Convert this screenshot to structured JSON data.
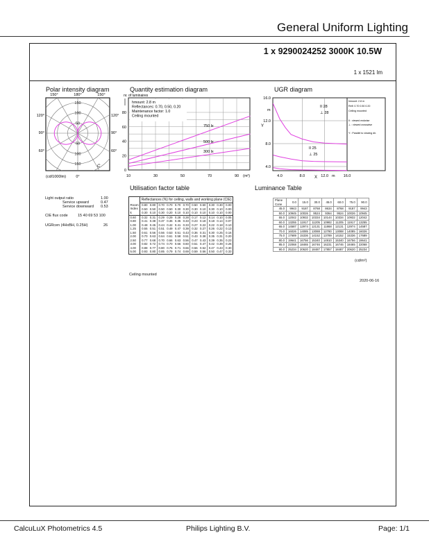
{
  "header": {
    "title": "General Uniform Lighting",
    "lamp": "1 x 9290024252 3000K 10.5W",
    "flux": "1 x 1521 lm"
  },
  "polar": {
    "title": "Polar intensity diagram",
    "angles_top": [
      "150°",
      "180°",
      "150°"
    ],
    "angles_side": [
      "120°",
      "90°",
      "60°"
    ],
    "rings": [
      "50",
      "100",
      "150"
    ],
    "unit": "(cd/1000lm)",
    "bottom_angle": "0°",
    "plane_label": "C",
    "intensity_at_90": 115,
    "color": "#e040e0"
  },
  "quantity": {
    "title": "Quantity estimation diagram",
    "ylabel": "nr. of luminaires",
    "info": [
      "hmount: 2.8 m",
      "Reflectances:  0.70, 0.50, 0.20",
      "Maintenance factor:  1.0",
      "Ceiling mounted"
    ],
    "chart_data": {
      "type": "line",
      "x_ticks": [
        "10",
        "30",
        "50",
        "70",
        "90"
      ],
      "y_ticks": [
        "0",
        "20",
        "40",
        "60",
        "80"
      ],
      "xlabel": "(m²)",
      "xlim": [
        10,
        100
      ],
      "ylim": [
        0,
        90
      ],
      "series": [
        {
          "name": "750 lx",
          "x": [
            10,
            100
          ],
          "y": [
            14,
            75
          ]
        },
        {
          "name": "500 lx",
          "x": [
            10,
            100
          ],
          "y": [
            9,
            50
          ]
        },
        {
          "name": "300 lx",
          "x": [
            10,
            100
          ],
          "y": [
            5,
            30
          ]
        }
      ]
    }
  },
  "ugr": {
    "title": "UGR diagram",
    "legend": [
      "hmount: 2.8 m",
      "Refl: 0.70 0.50 0.20",
      "Ceiling mounted",
      "II : viewed endwise",
      "⊥ : viewed crosswise",
      "Y : Parallel to viewing dir."
    ],
    "labels": {
      "end_top": "II 28",
      "cross_top": "⊥ 28",
      "end_mid": "II 25",
      "cross_mid": "⊥ 25"
    },
    "xlabel": "X",
    "ylabel": "Y",
    "unit": "m",
    "chart_data": {
      "type": "line",
      "x_ticks": [
        "4.0",
        "8.0",
        "12.0",
        "16.0"
      ],
      "y_ticks": [
        "4.0",
        "8.0",
        "12.0",
        "16.0"
      ],
      "xlim": [
        2.8,
        16
      ],
      "ylim": [
        3.3,
        16
      ],
      "series": [
        {
          "x": [
            2.8,
            4,
            5,
            6,
            8,
            10,
            12,
            14,
            16
          ],
          "y": [
            15,
            12.3,
            10.8,
            9.6,
            8.8,
            8.3,
            8.1,
            8,
            7.9
          ]
        },
        {
          "x": [
            2.8,
            4,
            6,
            8,
            10,
            12,
            16
          ],
          "y": [
            6,
            5.7,
            5.3,
            5.0,
            4.9,
            4.85,
            4.8
          ]
        },
        {
          "x": [
            2.8,
            4,
            6,
            8,
            12,
            16
          ],
          "y": [
            3.8,
            3.6,
            3.45,
            3.4,
            3.35,
            3.3
          ]
        }
      ]
    }
  },
  "info": {
    "rows": [
      [
        "Light output ratio",
        "1.00"
      ],
      [
        "Service upward",
        "0.47"
      ],
      [
        "Service downward",
        "0.53"
      ],
      [
        "CIE flux code",
        "15 40 69 53 100"
      ],
      [
        "UGRcen (4HxBH, 0.25H)",
        "26"
      ]
    ]
  },
  "uf": {
    "title": "Utilisation factor table",
    "caption": "Reflectances (%) for ceiling, walls and working plane (CIE)",
    "room_index": "Room Index k",
    "footer": "Ceiling mounted",
    "refl": [
      [
        "0.80",
        "0.80",
        "0.70",
        "0.70",
        "0.70",
        "0.70",
        "0.50",
        "0.50",
        "0.30",
        "0.30",
        "0.00"
      ],
      [
        "0.50",
        "0.50",
        "0.50",
        "0.50",
        "0.30",
        "0.30",
        "0.30",
        "0.10",
        "0.30",
        "0.10",
        "0.00"
      ],
      [
        "0.30",
        "0.10",
        "0.30",
        "0.20",
        "0.10",
        "0.10",
        "0.10",
        "0.10",
        "0.10",
        "0.10",
        "0.00"
      ]
    ],
    "rows": [
      [
        "0.60",
        "0.32",
        "0.31",
        "0.29",
        "0.29",
        "0.28",
        "0.28",
        "0.17",
        "0.12",
        "0.14",
        "0.10",
        "0.05"
      ],
      [
        "0.80",
        "0.41",
        "0.38",
        "0.37",
        "0.36",
        "0.35",
        "0.33",
        "0.23",
        "0.18",
        "0.18",
        "0.14",
        "0.07"
      ],
      [
        "1.00",
        "0.48",
        "0.45",
        "0.44",
        "0.42",
        "0.41",
        "0.33",
        "0.27",
        "0.22",
        "0.22",
        "0.18",
        "0.10"
      ],
      [
        "1.25",
        "0.55",
        "0.51",
        "0.51",
        "0.49",
        "0.47",
        "0.39",
        "0.32",
        "0.27",
        "0.26",
        "0.22",
        "0.13"
      ],
      [
        "1.50",
        "0.61",
        "0.56",
        "0.56",
        "0.53",
        "0.51",
        "0.43",
        "0.36",
        "0.31",
        "0.30",
        "0.25",
        "0.16"
      ],
      [
        "2.00",
        "0.70",
        "0.63",
        "0.64",
        "0.61",
        "0.58",
        "0.51",
        "0.43",
        "0.38",
        "0.35",
        "0.31",
        "0.20"
      ],
      [
        "2.50",
        "0.77",
        "0.68",
        "0.70",
        "0.66",
        "0.63",
        "0.56",
        "0.47",
        "0.43",
        "0.39",
        "0.35",
        "0.23"
      ],
      [
        "3.00",
        "0.82",
        "0.72",
        "0.74",
        "0.70",
        "0.66",
        "0.60",
        "0.51",
        "0.47",
        "0.42",
        "0.39",
        "0.26"
      ],
      [
        "4.00",
        "0.88",
        "0.77",
        "0.80",
        "0.75",
        "0.71",
        "0.66",
        "0.56",
        "0.52",
        "0.47",
        "0.43",
        "0.30"
      ],
      [
        "5.00",
        "0.93",
        "0.80",
        "0.85",
        "0.79",
        "0.74",
        "0.69",
        "0.59",
        "0.56",
        "0.50",
        "0.47",
        "0.33"
      ]
    ]
  },
  "lum": {
    "title": "Luminance Table",
    "corner": "Plane Cone",
    "cols": [
      "0.0",
      "15.0",
      "30.0",
      "45.0",
      "60.0",
      "75.0",
      "90.0"
    ],
    "unit": "(cd/m²)",
    "rows": [
      [
        "45.0",
        "9943",
        "9187",
        "8768",
        "8634",
        "8768",
        "9187",
        "9943"
      ],
      [
        "50.0",
        "10945",
        "10026",
        "9524",
        "9364",
        "9524",
        "10026",
        "10945"
      ],
      [
        "55.0",
        "12042",
        "10932",
        "10334",
        "10144",
        "10334",
        "10932",
        "12042"
      ],
      [
        "60.0",
        "13255",
        "11917",
        "11205",
        "10982",
        "11205",
        "11917",
        "13255"
      ],
      [
        "65.0",
        "14587",
        "12974",
        "12131",
        "11868",
        "12131",
        "12974",
        "14587"
      ],
      [
        "70.0",
        "16026",
        "14085",
        "13088",
        "12780",
        "13088",
        "14085",
        "16026"
      ],
      [
        "75.0",
        "17689",
        "15336",
        "14152",
        "13789",
        "14152",
        "15336",
        "17689"
      ],
      [
        "80.0",
        "19641",
        "16756",
        "15340",
        "14910",
        "15340",
        "16756",
        "19641"
      ],
      [
        "85.0",
        "22068",
        "18465",
        "16746",
        "16231",
        "16746",
        "18465",
        "22068"
      ],
      [
        "90.0",
        "25234",
        "20620",
        "18487",
        "17857",
        "18487",
        "20620",
        "25234"
      ]
    ]
  },
  "date": "2020-06-16",
  "footer": {
    "left": "CalcuLuX Photometrics 4.5",
    "center": "Philips Lighting B.V.",
    "right": "Page: 1/1"
  }
}
